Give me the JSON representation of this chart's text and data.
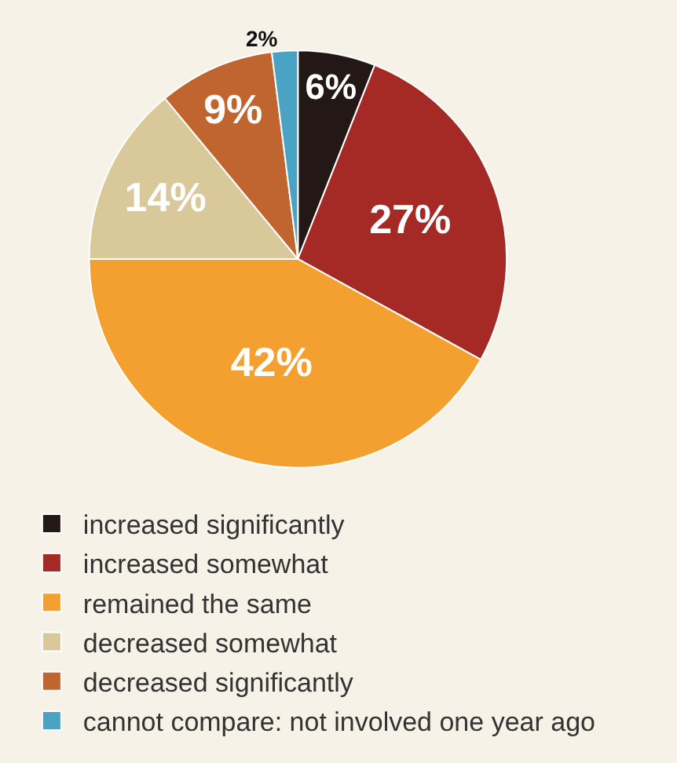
{
  "chart_data": {
    "type": "pie",
    "categories": [
      "increased significantly",
      "increased somewhat",
      "remained the same",
      "decreased somewhat",
      "decreased significantly",
      "cannot compare: not involved one year ago"
    ],
    "values": [
      6,
      27,
      42,
      14,
      9,
      2
    ],
    "value_labels": [
      "6%",
      "27%",
      "42%",
      "14%",
      "9%",
      "2%"
    ],
    "colors": [
      "#231815",
      "#a52a26",
      "#f4a030",
      "#d9c89a",
      "#c0652f",
      "#4ba3c3"
    ],
    "legend": "bottom"
  }
}
